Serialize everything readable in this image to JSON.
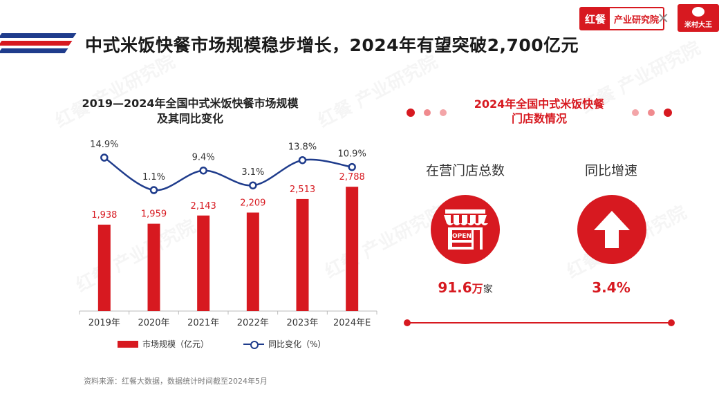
{
  "header": {
    "title": "中式米饭快餐市场规模稳步增长，2024年有望突破2,700亿元",
    "logo_brand": "红餐",
    "logo_institute": "产业研究院",
    "logo_separator": "×",
    "partner_logo": "米村大王"
  },
  "watermark_text": "红餐 产业研究院",
  "chart": {
    "title_line1": "2019—2024年全国中式米饭快餐市场规模",
    "title_line2": "及其同比变化",
    "legend_bar": "市场规模（亿元）",
    "legend_line": "同比变化（%）"
  },
  "chart_data": {
    "type": "bar",
    "categories": [
      "2019年",
      "2020年",
      "2021年",
      "2022年",
      "2023年",
      "2024年E"
    ],
    "series": [
      {
        "name": "市场规模（亿元）",
        "type": "bar",
        "values": [
          1938,
          1959,
          2143,
          2209,
          2513,
          2788
        ],
        "labels": [
          "1,938",
          "1,959",
          "2,143",
          "2,209",
          "2,513",
          "2,788"
        ],
        "color": "#d71920"
      },
      {
        "name": "同比变化（%）",
        "type": "line",
        "values": [
          14.9,
          1.1,
          9.4,
          3.1,
          13.8,
          10.9
        ],
        "labels": [
          "14.9%",
          "1.1%",
          "9.4%",
          "3.1%",
          "13.8%",
          "10.9%"
        ],
        "color": "#1f3c8c"
      }
    ],
    "title": "2019—2024年全国中式米饭快餐市场规模及其同比变化",
    "xlabel": "",
    "ylabel": "",
    "grid": false,
    "legend": "bottom"
  },
  "source": "资料来源：红餐大数据，数据统计时间截至2024年5月",
  "panel": {
    "title_line1": "2024年全国中式米饭快餐",
    "title_line2": "门店数情况",
    "stores_label": "在营门店总数",
    "stores_value": "91.6",
    "stores_unit": "万",
    "stores_unit2": "家",
    "growth_label": "同比增速",
    "growth_value": "3.4%",
    "store_sign": "OPEN",
    "store_icon": "storefront-icon",
    "growth_icon": "arrow-up-icon",
    "accent_color": "#d71920",
    "dot_colors": [
      "#d71920",
      "#f08a8e",
      "#f3a5a8"
    ]
  }
}
